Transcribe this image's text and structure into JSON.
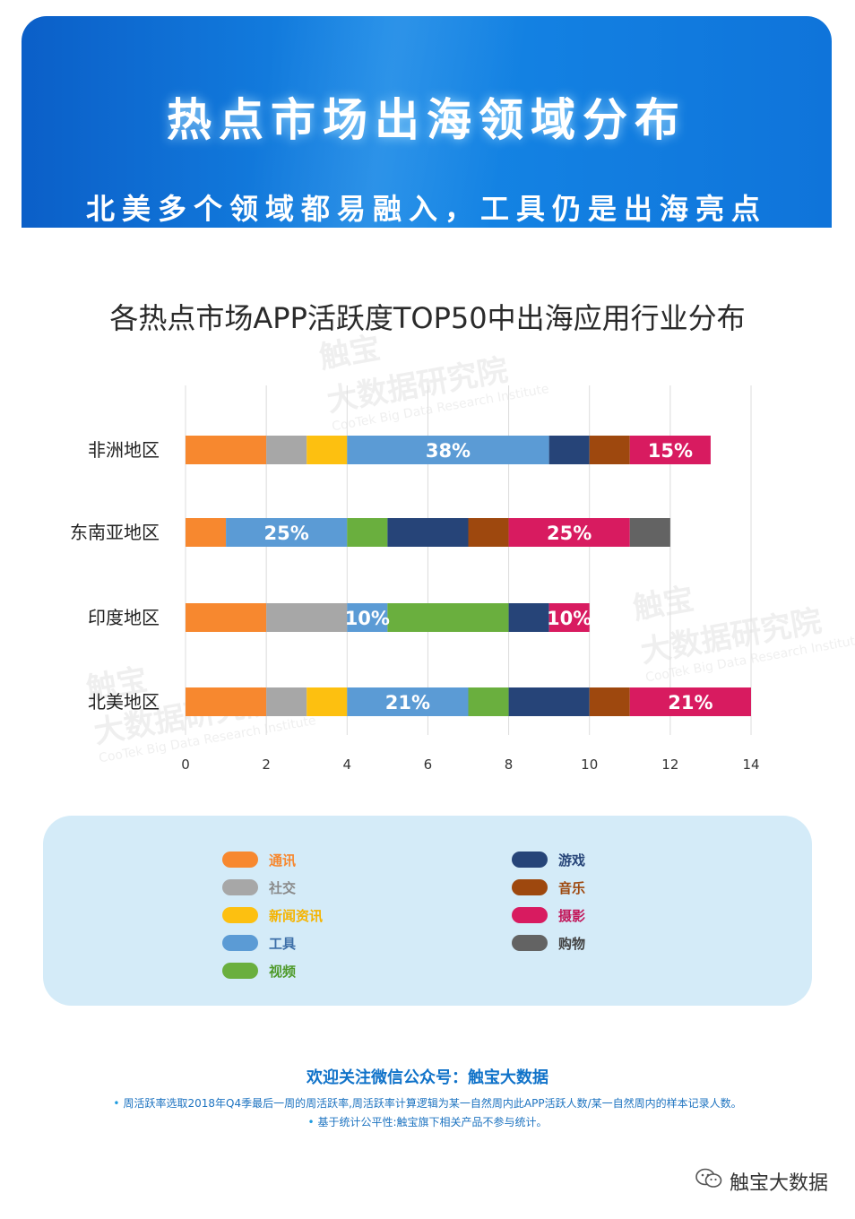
{
  "header": {
    "title": "热点市场出海领域分布",
    "subtitle": "北美多个领域都易融入，工具仍是出海亮点"
  },
  "chart_data": {
    "type": "bar",
    "orientation": "horizontal",
    "stacked": true,
    "title": "各热点市场APP活跃度TOP50中出海应用行业分布",
    "xlabel": "",
    "ylabel": "",
    "xlim": [
      0,
      14
    ],
    "xticks": [
      "0",
      "2",
      "4",
      "6",
      "8",
      "10",
      "12",
      "14"
    ],
    "grid": "vertical",
    "legend_position": "bottom",
    "categories": [
      "非洲地区",
      "东南亚地区",
      "印度地区",
      "北美地区"
    ],
    "series": [
      {
        "name": "通讯",
        "color": "#f7882f",
        "values": [
          2,
          1,
          2,
          2
        ]
      },
      {
        "name": "社交",
        "color": "#a7a7a7",
        "values": [
          1,
          0,
          2,
          1
        ]
      },
      {
        "name": "新闻资讯",
        "color": "#fdc010",
        "values": [
          1,
          0,
          0,
          1
        ]
      },
      {
        "name": "工具",
        "color": "#5b9bd5",
        "values": [
          5,
          3,
          1,
          3
        ]
      },
      {
        "name": "视频",
        "color": "#6aaf3e",
        "values": [
          0,
          1,
          3,
          1
        ]
      },
      {
        "name": "游戏",
        "color": "#264478",
        "values": [
          1,
          2,
          1,
          2
        ]
      },
      {
        "name": "音乐",
        "color": "#9e480e",
        "values": [
          1,
          1,
          0,
          1
        ]
      },
      {
        "name": "摄影",
        "color": "#d81b60",
        "values": [
          2,
          3,
          1,
          3
        ]
      },
      {
        "name": "购物",
        "color": "#636363",
        "values": [
          0,
          1,
          0,
          0
        ]
      }
    ],
    "data_labels": [
      {
        "category": "非洲地区",
        "series": "工具",
        "text": "38%"
      },
      {
        "category": "非洲地区",
        "series": "摄影",
        "text": "15%"
      },
      {
        "category": "东南亚地区",
        "series": "工具",
        "text": "25%"
      },
      {
        "category": "东南亚地区",
        "series": "摄影",
        "text": "25%"
      },
      {
        "category": "印度地区",
        "series": "工具",
        "text": "10%"
      },
      {
        "category": "印度地区",
        "series": "摄影",
        "text": "10%"
      },
      {
        "category": "北美地区",
        "series": "工具",
        "text": "21%"
      },
      {
        "category": "北美地区",
        "series": "摄影",
        "text": "21%"
      }
    ]
  },
  "footer": {
    "follow": "欢迎关注微信公众号：触宝大数据",
    "note1": "周活跃率选取2018年Q4季最后一周的周活跃率,周活跃率计算逻辑为某一自然周内此APP活跃人数/某一自然周内的样本记录人数。",
    "note2": "基于统计公平性:触宝旗下相关产品不参与统计。",
    "bullet": "•"
  },
  "brand": {
    "label": "触宝大数据",
    "icon": "wechat-icon"
  },
  "watermark": {
    "cn_short": "触宝",
    "cn_full": "大数据研究院",
    "en": "CooTek Big Data Research Institute"
  }
}
